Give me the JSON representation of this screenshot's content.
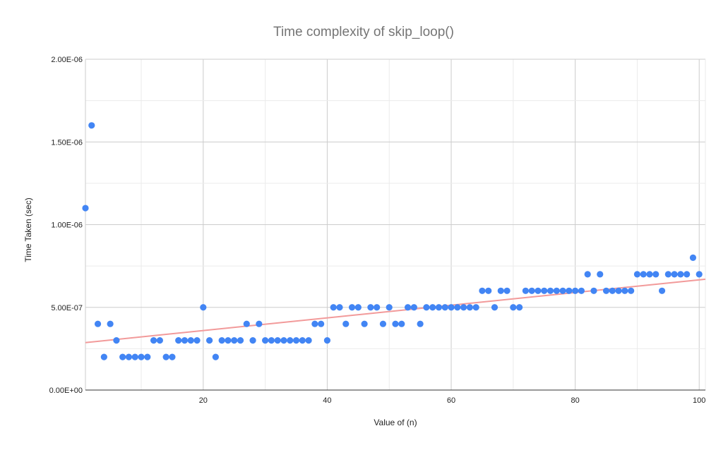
{
  "chart_data": {
    "type": "scatter",
    "title": "Time complexity of skip_loop()",
    "xlabel": "Value of (n)",
    "ylabel": "Time Taken (sec)",
    "xlim": [
      1,
      101
    ],
    "ylim": [
      0,
      2e-06
    ],
    "x_ticks": [
      20,
      40,
      60,
      80,
      100
    ],
    "x_tick_labels": [
      "20",
      "40",
      "60",
      "80",
      "100"
    ],
    "y_ticks": [
      0,
      5e-07,
      1e-06,
      1.5e-06,
      2e-06
    ],
    "y_tick_labels": [
      "0.00E+00",
      "5.00E-07",
      "1.00E-06",
      "1.50E-06",
      "2.00E-06"
    ],
    "grid": true,
    "legend": "none",
    "series": [
      {
        "name": "Time Taken (sec)",
        "color": "#4285f4",
        "x": [
          1,
          2,
          3,
          4,
          5,
          6,
          7,
          8,
          9,
          10,
          11,
          12,
          13,
          14,
          15,
          16,
          17,
          18,
          19,
          20,
          21,
          22,
          23,
          24,
          25,
          26,
          27,
          28,
          29,
          30,
          31,
          32,
          33,
          34,
          35,
          36,
          37,
          38,
          39,
          40,
          41,
          42,
          43,
          44,
          45,
          46,
          47,
          48,
          49,
          50,
          51,
          52,
          53,
          54,
          55,
          56,
          57,
          58,
          59,
          60,
          61,
          62,
          63,
          64,
          65,
          66,
          67,
          68,
          69,
          70,
          71,
          72,
          73,
          74,
          75,
          76,
          77,
          78,
          79,
          80,
          81,
          82,
          83,
          84,
          85,
          86,
          87,
          88,
          89,
          90,
          91,
          92,
          93,
          94,
          95,
          96,
          97,
          98,
          99,
          100
        ],
        "y": [
          1.1e-06,
          1.6e-06,
          4e-07,
          2e-07,
          4e-07,
          3e-07,
          2e-07,
          2e-07,
          2e-07,
          2e-07,
          2e-07,
          3e-07,
          3e-07,
          2e-07,
          2e-07,
          3e-07,
          3e-07,
          3e-07,
          3e-07,
          5e-07,
          3e-07,
          2e-07,
          3e-07,
          3e-07,
          3e-07,
          3e-07,
          4e-07,
          3e-07,
          4e-07,
          3e-07,
          3e-07,
          3e-07,
          3e-07,
          3e-07,
          3e-07,
          3e-07,
          3e-07,
          4e-07,
          4e-07,
          3e-07,
          5e-07,
          5e-07,
          4e-07,
          5e-07,
          5e-07,
          4e-07,
          5e-07,
          5e-07,
          4e-07,
          5e-07,
          4e-07,
          4e-07,
          5e-07,
          5e-07,
          4e-07,
          5e-07,
          5e-07,
          5e-07,
          5e-07,
          5e-07,
          5e-07,
          5e-07,
          5e-07,
          5e-07,
          6e-07,
          6e-07,
          5e-07,
          6e-07,
          6e-07,
          5e-07,
          5e-07,
          6e-07,
          6e-07,
          6e-07,
          6e-07,
          6e-07,
          6e-07,
          6e-07,
          6e-07,
          6e-07,
          6e-07,
          7e-07,
          6e-07,
          7e-07,
          6e-07,
          6e-07,
          6e-07,
          6e-07,
          6e-07,
          7e-07,
          7e-07,
          7e-07,
          7e-07,
          6e-07,
          7e-07,
          7e-07,
          7e-07,
          7e-07,
          8e-07,
          7e-07
        ]
      }
    ],
    "trendline": {
      "type": "linear",
      "color": "#f29a9a",
      "x": [
        1,
        101
      ],
      "y": [
        2.87e-07,
        6.7e-07
      ]
    }
  }
}
